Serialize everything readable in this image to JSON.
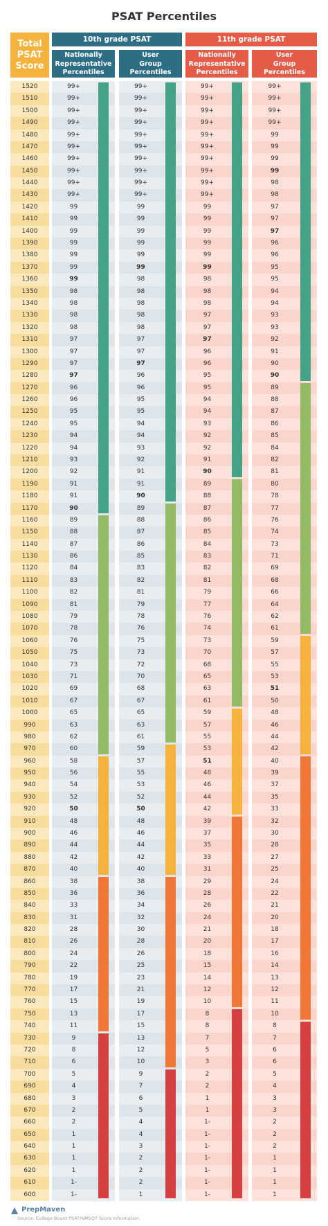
{
  "title": "PSAT Percentiles",
  "headers": {
    "total": "Total\nPSAT\nScore",
    "grade10": "10th grade PSAT",
    "grade11": "11th grade PSAT",
    "nat": "Nationally\nRepresentative\nPercentiles",
    "user": "User\nGroup\nPercentiles"
  },
  "colors": {
    "green": "#46a287",
    "lightgreen": "#93bb63",
    "yellow": "#f5b23c",
    "orange": "#ef7837",
    "red": "#d64040",
    "blue_header": "#2e6e85",
    "red_header": "#e45b47",
    "score_col": "#f5b23c"
  },
  "footer": {
    "brand": "PrepMaven",
    "source": "Source: College Board PSAT/NMSQT Score Information"
  },
  "chart_data": {
    "type": "table",
    "title": "PSAT Percentiles",
    "scores": [
      1520,
      1510,
      1500,
      1490,
      1480,
      1470,
      1460,
      1450,
      1440,
      1430,
      1420,
      1410,
      1400,
      1390,
      1380,
      1370,
      1360,
      1350,
      1340,
      1330,
      1320,
      1310,
      1300,
      1290,
      1280,
      1270,
      1260,
      1250,
      1240,
      1230,
      1220,
      1210,
      1200,
      1190,
      1180,
      1170,
      1160,
      1150,
      1140,
      1130,
      1120,
      1110,
      1100,
      1090,
      1080,
      1070,
      1060,
      1050,
      1040,
      1030,
      1020,
      1010,
      1000,
      990,
      980,
      970,
      960,
      950,
      940,
      930,
      920,
      910,
      900,
      890,
      880,
      870,
      860,
      850,
      840,
      830,
      820,
      810,
      800,
      790,
      780,
      770,
      760,
      750,
      740,
      730,
      720,
      710,
      700,
      690,
      680,
      670,
      660,
      650,
      640,
      630,
      620,
      610,
      600
    ],
    "series": [
      {
        "name": "10th grade PSAT — Nationally Representative Percentiles",
        "values": [
          "99+",
          "99+",
          "99+",
          "99+",
          "99+",
          "99+",
          "99+",
          "99+",
          "99+",
          "99+",
          "99",
          "99",
          "99",
          "99",
          "99",
          "99",
          "99",
          "98",
          "98",
          "98",
          "98",
          "97",
          "97",
          "97",
          "97",
          "96",
          "96",
          "95",
          "95",
          "94",
          "94",
          "93",
          "92",
          "91",
          "91",
          "90",
          "89",
          "88",
          "87",
          "86",
          "84",
          "83",
          "82",
          "81",
          "79",
          "78",
          "76",
          "75",
          "73",
          "71",
          "69",
          "67",
          "65",
          "63",
          "62",
          "60",
          "58",
          "56",
          "54",
          "52",
          "50",
          "48",
          "46",
          "44",
          "42",
          "40",
          "38",
          "36",
          "33",
          "31",
          "28",
          "26",
          "24",
          "22",
          "19",
          "17",
          "15",
          "13",
          "11",
          "9",
          "8",
          "6",
          "5",
          "4",
          "3",
          "2",
          "2",
          "1",
          "1",
          "1",
          "1",
          "1-",
          "1-"
        ],
        "bold_scores": [
          1360,
          1280,
          1170,
          920
        ],
        "color_bands": [
          {
            "color": "green",
            "from": 1520,
            "to": 1170
          },
          {
            "color": "lightgreen",
            "from": 1160,
            "to": 970
          },
          {
            "color": "yellow",
            "from": 960,
            "to": 870
          },
          {
            "color": "orange",
            "from": 860,
            "to": 740
          },
          {
            "color": "red",
            "from": 730,
            "to": 600
          }
        ]
      },
      {
        "name": "10th grade PSAT — User Group Percentiles",
        "values": [
          "99+",
          "99+",
          "99+",
          "99+",
          "99+",
          "99+",
          "99+",
          "99+",
          "99+",
          "99+",
          "99",
          "99",
          "99",
          "99",
          "99",
          "99",
          "98",
          "98",
          "98",
          "98",
          "98",
          "97",
          "97",
          "97",
          "96",
          "96",
          "95",
          "95",
          "94",
          "94",
          "93",
          "92",
          "91",
          "91",
          "90",
          "89",
          "88",
          "87",
          "86",
          "85",
          "83",
          "82",
          "81",
          "79",
          "78",
          "76",
          "75",
          "73",
          "72",
          "70",
          "68",
          "67",
          "65",
          "63",
          "61",
          "59",
          "57",
          "55",
          "53",
          "52",
          "50",
          "48",
          "46",
          "44",
          "42",
          "40",
          "38",
          "36",
          "34",
          "32",
          "30",
          "28",
          "26",
          "25",
          "23",
          "21",
          "19",
          "17",
          "15",
          "13",
          "12",
          "10",
          "9",
          "7",
          "6",
          "5",
          "4",
          "4",
          "3",
          "2",
          "2",
          "2",
          "1"
        ],
        "bold_scores": [
          1370,
          1290,
          1180,
          920
        ],
        "color_bands": [
          {
            "color": "green",
            "from": 1520,
            "to": 1180
          },
          {
            "color": "lightgreen",
            "from": 1170,
            "to": 980
          },
          {
            "color": "yellow",
            "from": 970,
            "to": 870
          },
          {
            "color": "orange",
            "from": 860,
            "to": 710
          },
          {
            "color": "red",
            "from": 700,
            "to": 600
          }
        ]
      },
      {
        "name": "11th grade PSAT — Nationally Representative Percentiles",
        "values": [
          "99+",
          "99+",
          "99+",
          "99+",
          "99+",
          "99+",
          "99+",
          "99+",
          "99+",
          "99+",
          "99",
          "99",
          "99",
          "99",
          "99",
          "99",
          "98",
          "98",
          "98",
          "97",
          "97",
          "97",
          "96",
          "96",
          "95",
          "95",
          "94",
          "94",
          "93",
          "92",
          "92",
          "91",
          "90",
          "89",
          "88",
          "87",
          "86",
          "85",
          "84",
          "83",
          "82",
          "81",
          "79",
          "77",
          "76",
          "74",
          "73",
          "70",
          "68",
          "65",
          "63",
          "61",
          "59",
          "57",
          "55",
          "53",
          "51",
          "48",
          "46",
          "44",
          "42",
          "39",
          "37",
          "35",
          "33",
          "31",
          "29",
          "28",
          "26",
          "24",
          "21",
          "20",
          "18",
          "15",
          "14",
          "12",
          "10",
          "8",
          "8",
          "7",
          "5",
          "3",
          "2",
          "2",
          "1",
          "1",
          "1-",
          "1-",
          "1-",
          "1-",
          "1-",
          "1-",
          "1-"
        ],
        "bold_scores": [
          1370,
          1310,
          1200,
          960
        ],
        "color_bands": [
          {
            "color": "green",
            "from": 1520,
            "to": 1200
          },
          {
            "color": "lightgreen",
            "from": 1190,
            "to": 1010
          },
          {
            "color": "yellow",
            "from": 1000,
            "to": 920
          },
          {
            "color": "orange",
            "from": 910,
            "to": 760
          },
          {
            "color": "red",
            "from": 750,
            "to": 600
          }
        ]
      },
      {
        "name": "11th grade PSAT — User Group Percentiles",
        "values": [
          "99+",
          "99+",
          "99+",
          "99+",
          "99",
          "99",
          "99",
          "99",
          "98",
          "98",
          "97",
          "97",
          "97",
          "96",
          "96",
          "95",
          "95",
          "94",
          "94",
          "93",
          "93",
          "92",
          "91",
          "90",
          "90",
          "89",
          "88",
          "87",
          "86",
          "85",
          "84",
          "82",
          "81",
          "80",
          "78",
          "77",
          "76",
          "74",
          "73",
          "71",
          "69",
          "68",
          "66",
          "64",
          "62",
          "61",
          "59",
          "57",
          "55",
          "53",
          "51",
          "50",
          "48",
          "46",
          "44",
          "42",
          "40",
          "39",
          "37",
          "35",
          "33",
          "32",
          "30",
          "28",
          "27",
          "25",
          "24",
          "22",
          "21",
          "20",
          "18",
          "17",
          "16",
          "14",
          "13",
          "12",
          "11",
          "10",
          "8",
          "7",
          "6",
          "6",
          "5",
          "4",
          "3",
          "3",
          "2",
          "2",
          "2",
          "1",
          "1",
          "1",
          "1"
        ],
        "bold_scores": [
          1450,
          1400,
          1280,
          1020
        ],
        "color_bands": [
          {
            "color": "green",
            "from": 1520,
            "to": 1280
          },
          {
            "color": "lightgreen",
            "from": 1270,
            "to": 1070
          },
          {
            "color": "yellow",
            "from": 1060,
            "to": 970
          },
          {
            "color": "orange",
            "from": 960,
            "to": 750
          },
          {
            "color": "red",
            "from": 740,
            "to": 600
          }
        ]
      }
    ]
  }
}
